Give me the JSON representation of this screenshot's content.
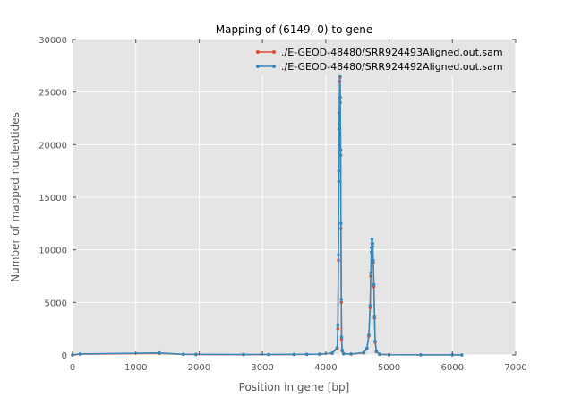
{
  "chart_data": {
    "type": "line",
    "title": "Mapping of (6149, 0) to gene",
    "xlabel": "Position in gene [bp]",
    "ylabel": "Number of mapped nucleotides",
    "xlim": [
      0,
      7000
    ],
    "ylim": [
      0,
      30000
    ],
    "x_ticks": [
      0,
      1000,
      2000,
      3000,
      4000,
      5000,
      6000,
      7000
    ],
    "x_tick_labels": [
      "0",
      "1000",
      "2000",
      "3000",
      "4000",
      "5000",
      "6000",
      "7000"
    ],
    "y_ticks": [
      0,
      5000,
      10000,
      15000,
      20000,
      25000,
      30000
    ],
    "y_tick_labels": [
      "0",
      "5000",
      "10000",
      "15000",
      "20000",
      "25000",
      "30000"
    ],
    "grid": true,
    "legend_position": "top-right",
    "colors": {
      "plot_background": "#e5e5e5",
      "grid": "#ffffff",
      "series_1": "#e24a33",
      "series_2": "#348abd"
    },
    "series": [
      {
        "name": "./E-GEOD-48480/SRR924493Aligned.out.sam",
        "color": "#e24a33",
        "x": [
          0,
          120,
          1370,
          1750,
          1950,
          2700,
          3100,
          3500,
          3700,
          3900,
          4100,
          4180,
          4190,
          4200,
          4205,
          4210,
          4215,
          4220,
          4225,
          4230,
          4235,
          4240,
          4245,
          4250,
          4260,
          4280,
          4400,
          4600,
          4650,
          4680,
          4700,
          4710,
          4720,
          4730,
          4740,
          4750,
          4760,
          4770,
          4780,
          4800,
          4850,
          5000,
          5500,
          6000,
          6149
        ],
        "y": [
          0,
          80,
          150,
          50,
          40,
          30,
          30,
          40,
          50,
          60,
          150,
          600,
          2500,
          9000,
          16500,
          20000,
          23000,
          26000,
          26400,
          24000,
          19000,
          12000,
          5000,
          1500,
          400,
          100,
          80,
          200,
          600,
          1800,
          4500,
          7500,
          9800,
          10600,
          10300,
          8800,
          6500,
          3500,
          1200,
          300,
          60,
          20,
          10,
          5,
          0
        ]
      },
      {
        "name": "./E-GEOD-48480/SRR924492Aligned.out.sam",
        "color": "#348abd",
        "x": [
          0,
          120,
          1370,
          1750,
          1950,
          2700,
          3100,
          3500,
          3700,
          3900,
          4100,
          4180,
          4190,
          4200,
          4205,
          4210,
          4215,
          4220,
          4225,
          4230,
          4235,
          4240,
          4245,
          4250,
          4260,
          4280,
          4400,
          4600,
          4650,
          4680,
          4700,
          4710,
          4720,
          4730,
          4740,
          4750,
          4760,
          4770,
          4780,
          4800,
          4850,
          5000,
          5500,
          6000,
          6149
        ],
        "y": [
          0,
          90,
          200,
          60,
          50,
          40,
          40,
          50,
          60,
          80,
          180,
          700,
          2800,
          9500,
          17500,
          21500,
          24500,
          27000,
          26600,
          24500,
          19500,
          12500,
          5300,
          1700,
          450,
          120,
          90,
          220,
          650,
          1900,
          4700,
          7800,
          10200,
          11000,
          10600,
          9000,
          6700,
          3700,
          1300,
          350,
          70,
          25,
          12,
          6,
          0
        ]
      }
    ]
  }
}
